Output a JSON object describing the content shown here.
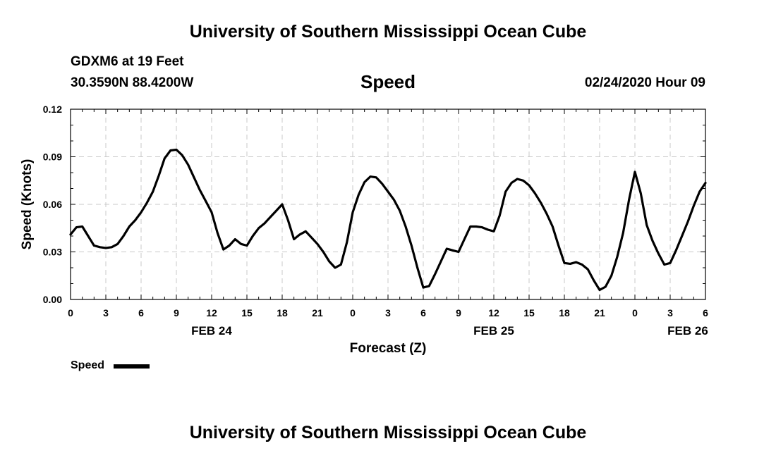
{
  "header": {
    "title_top": "University of Southern Mississippi Ocean Cube",
    "station": "GDXM6 at 19 Feet",
    "coords": "30.3590N 88.4200W",
    "datetime": "02/24/2020 Hour 09"
  },
  "footer": {
    "title_bottom": "University of Southern Mississippi Ocean Cube"
  },
  "chart_data": {
    "type": "line",
    "title": "Speed",
    "xlabel": "Forecast (Z)",
    "ylabel": "Speed (Knots)",
    "ylim": [
      0,
      0.12
    ],
    "xlim": [
      0,
      54
    ],
    "grid": true,
    "y_ticks": [
      "0.00",
      "0.03",
      "0.06",
      "0.09",
      "0.12"
    ],
    "x_tick_labels": [
      "0",
      "3",
      "6",
      "9",
      "12",
      "15",
      "18",
      "21",
      "0",
      "3",
      "6",
      "9",
      "12",
      "15",
      "18",
      "21",
      "0",
      "3",
      "6"
    ],
    "date_labels": [
      {
        "text": "FEB 24",
        "hour": 12
      },
      {
        "text": "FEB 25",
        "hour": 36
      },
      {
        "text": "FEB 26",
        "hour": 52.5
      }
    ],
    "legend": {
      "label": "Speed",
      "position": "bottom-left"
    },
    "series": [
      {
        "name": "Speed",
        "color": "#000000",
        "x": [
          0,
          0.5,
          1,
          1.5,
          2,
          2.5,
          3,
          3.5,
          4,
          4.5,
          5,
          5.5,
          6,
          6.5,
          7,
          7.5,
          8,
          8.5,
          9,
          9.5,
          10,
          10.5,
          11,
          11.5,
          12,
          12.5,
          13,
          13.5,
          14,
          14.5,
          15,
          15.5,
          16,
          16.5,
          17,
          17.5,
          18,
          18.5,
          19,
          19.5,
          20,
          20.5,
          21,
          21.5,
          22,
          22.5,
          23,
          23.5,
          24,
          24.5,
          25,
          25.5,
          26,
          26.5,
          27,
          27.5,
          28,
          28.5,
          29,
          29.5,
          30,
          30.5,
          31,
          31.5,
          32,
          32.5,
          33,
          33.5,
          34,
          34.5,
          35,
          35.5,
          36,
          36.5,
          37,
          37.5,
          38,
          38.5,
          39,
          39.5,
          40,
          40.5,
          41,
          41.5,
          42,
          42.5,
          43,
          43.5,
          44,
          44.5,
          45,
          45.5,
          46,
          46.5,
          47,
          47.5,
          48,
          48.5,
          49,
          49.5,
          50,
          50.5,
          51,
          51.5,
          52,
          52.5,
          53,
          53.5,
          54
        ],
        "values": [
          0.041,
          0.0455,
          0.046,
          0.04,
          0.034,
          0.033,
          0.0325,
          0.033,
          0.035,
          0.04,
          0.046,
          0.05,
          0.055,
          0.061,
          0.068,
          0.078,
          0.089,
          0.094,
          0.0945,
          0.091,
          0.085,
          0.077,
          0.069,
          0.062,
          0.055,
          0.042,
          0.0315,
          0.034,
          0.038,
          0.035,
          0.034,
          0.04,
          0.045,
          0.048,
          0.052,
          0.056,
          0.06,
          0.05,
          0.038,
          0.041,
          0.043,
          0.039,
          0.035,
          0.03,
          0.024,
          0.02,
          0.022,
          0.036,
          0.055,
          0.066,
          0.074,
          0.0775,
          0.077,
          0.073,
          0.068,
          0.063,
          0.056,
          0.046,
          0.034,
          0.02,
          0.0075,
          0.0085,
          0.016,
          0.024,
          0.032,
          0.031,
          0.03,
          0.038,
          0.046,
          0.046,
          0.0455,
          0.044,
          0.043,
          0.053,
          0.068,
          0.0735,
          0.076,
          0.075,
          0.072,
          0.067,
          0.061,
          0.054,
          0.046,
          0.034,
          0.023,
          0.0225,
          0.0235,
          0.022,
          0.019,
          0.012,
          0.006,
          0.008,
          0.015,
          0.027,
          0.042,
          0.063,
          0.0805,
          0.067,
          0.047,
          0.037,
          0.029,
          0.022,
          0.023,
          0.031,
          0.04,
          0.049,
          0.059,
          0.068,
          0.0735
        ]
      }
    ]
  }
}
